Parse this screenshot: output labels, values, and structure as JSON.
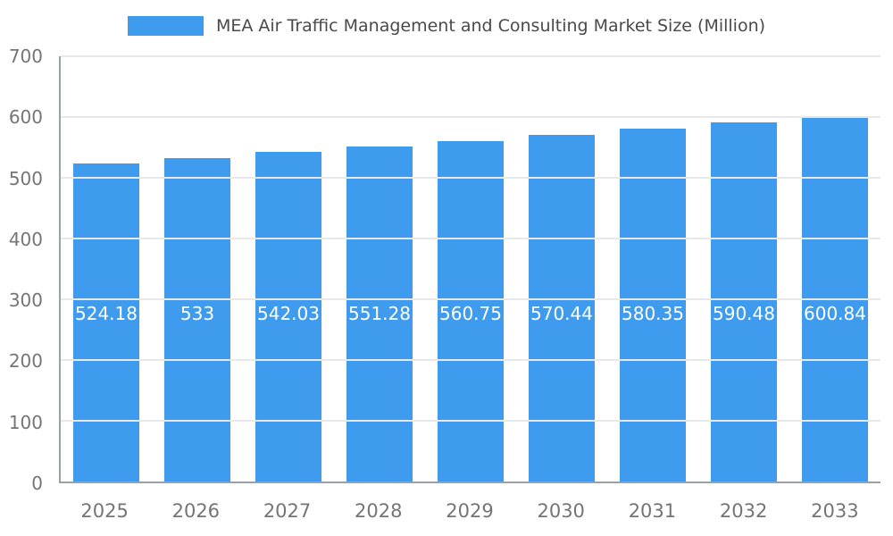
{
  "chart_data": {
    "type": "bar",
    "title": "MEA Air Traffic Management and Consulting Market Size (Million)",
    "categories": [
      "2025",
      "2026",
      "2027",
      "2028",
      "2029",
      "2030",
      "2031",
      "2032",
      "2033"
    ],
    "values": [
      524.18,
      533,
      542.03,
      551.28,
      560.75,
      570.44,
      580.35,
      590.48,
      600.84
    ],
    "value_labels": [
      "524.18",
      "533",
      "542.03",
      "551.28",
      "560.75",
      "570.44",
      "580.35",
      "590.48",
      "600.84"
    ],
    "xlabel": "",
    "ylabel": "",
    "ylim": [
      0,
      700
    ],
    "y_ticks": [
      0,
      100,
      200,
      300,
      400,
      500,
      600,
      700
    ],
    "legend_position": "top",
    "grid": true,
    "colors": {
      "bar": "#3e9bed",
      "bar_value_label": "#ffffff",
      "axis_text": "#757575",
      "axis_line": "#9aa0a6",
      "gridline": "#e8e8e8",
      "title_text": "#4a4a4a",
      "background": "#ffffff"
    }
  }
}
